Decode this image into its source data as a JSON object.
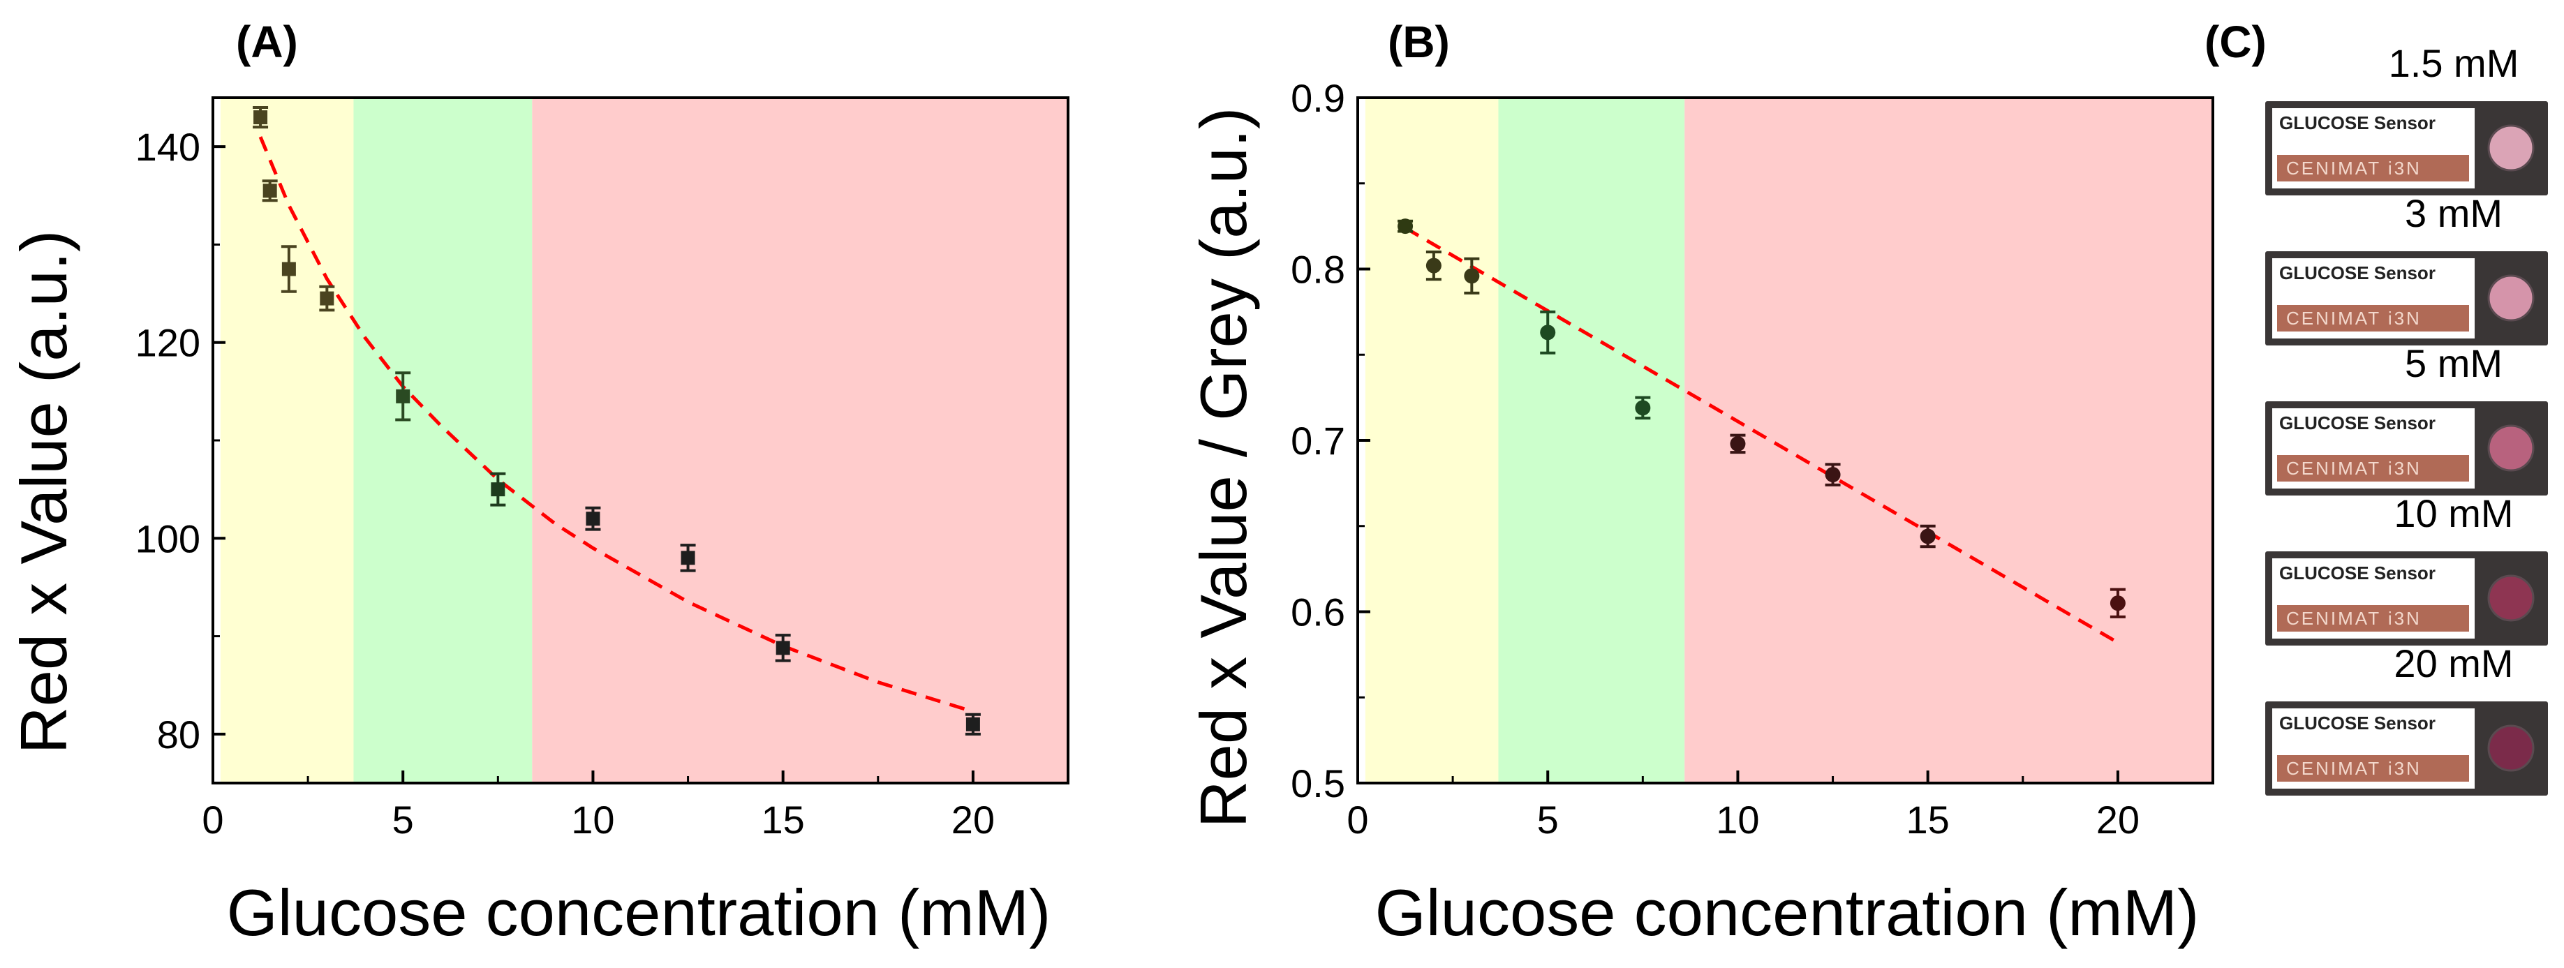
{
  "figure": {
    "panels": {
      "A": {
        "label": "(A)"
      },
      "B": {
        "label": "(B)"
      },
      "C": {
        "label": "(C)"
      }
    },
    "colors": {
      "zone_low": "#ffffd2",
      "zone_mid": "#ccffcc",
      "zone_high": "#ffcccc",
      "fit_line": "#ff0000"
    }
  },
  "chart_data": [
    {
      "id": "A",
      "type": "scatter",
      "title": "(A)",
      "xlabel": "Glucose concentration (mM)",
      "ylabel": "Red x Value (a.u.)",
      "xlim": [
        0,
        22.5
      ],
      "ylim": [
        75,
        145
      ],
      "xticks": [
        0,
        5,
        10,
        15,
        20
      ],
      "yticks": [
        80,
        100,
        120,
        140
      ],
      "grid": false,
      "zones": [
        {
          "name": "low",
          "x_from": 0.2,
          "x_to": 3.7,
          "color": "#ffffd2"
        },
        {
          "name": "mid",
          "x_from": 3.7,
          "x_to": 8.4,
          "color": "#ccffcc"
        },
        {
          "name": "high",
          "x_from": 8.4,
          "x_to": 22.5,
          "color": "#ffcccc"
        }
      ],
      "marker": "square",
      "series": [
        {
          "name": "data",
          "x": [
            1.25,
            1.5,
            2,
            3,
            5,
            7.5,
            10,
            12.5,
            15,
            20
          ],
          "y": [
            143,
            135.5,
            127.5,
            124.5,
            114.5,
            105,
            102,
            98,
            88.8,
            81
          ],
          "yerr": [
            1.0,
            1.0,
            2.3,
            1.2,
            2.4,
            1.6,
            1.1,
            1.3,
            1.3,
            1.0
          ],
          "colors": [
            "#4a4420",
            "#4a4420",
            "#4a4420",
            "#4a4420",
            "#2a4a22",
            "#1e3c1e",
            "#1e1e1e",
            "#1e1e1e",
            "#1e1e1e",
            "#1e1e1e"
          ]
        },
        {
          "name": "fit",
          "style": "dashed",
          "color": "#ff0000",
          "x": [
            1.25,
            2,
            3,
            4,
            5,
            6,
            7.5,
            9,
            10,
            12.5,
            15,
            17.5,
            20
          ],
          "y": [
            141,
            134,
            126.5,
            120.5,
            115.5,
            111.5,
            106,
            101.5,
            99,
            93.5,
            89,
            85.3,
            82.3
          ]
        }
      ]
    },
    {
      "id": "B",
      "type": "scatter",
      "title": "(B)",
      "xlabel": "Glucose concentration (mM)",
      "ylabel": "Red x Value / Grey (a.u.)",
      "xlim": [
        0,
        22.5
      ],
      "ylim": [
        0.5,
        0.9
      ],
      "xticks": [
        0,
        5,
        10,
        15,
        20
      ],
      "yticks": [
        0.5,
        0.6,
        0.7,
        0.8,
        0.9
      ],
      "ytick_labels": [
        "0.5",
        "0.6",
        "0.7",
        "0.8",
        "0.9"
      ],
      "grid": false,
      "zones": [
        {
          "name": "low",
          "x_from": 0.2,
          "x_to": 3.7,
          "color": "#ffffd2"
        },
        {
          "name": "mid",
          "x_from": 3.7,
          "x_to": 8.6,
          "color": "#ccffcc"
        },
        {
          "name": "high",
          "x_from": 8.6,
          "x_to": 22.5,
          "color": "#ffcccc"
        }
      ],
      "marker": "circle",
      "series": [
        {
          "name": "data",
          "x": [
            1.25,
            2,
            3,
            5,
            7.5,
            10,
            12.5,
            15,
            20
          ],
          "y": [
            0.825,
            0.802,
            0.796,
            0.763,
            0.719,
            0.698,
            0.68,
            0.644,
            0.605
          ],
          "yerr": [
            0.003,
            0.008,
            0.01,
            0.012,
            0.006,
            0.005,
            0.006,
            0.006,
            0.008
          ],
          "colors": [
            "#2f3a12",
            "#3a3a18",
            "#3a3a18",
            "#1e4a22",
            "#1e4a22",
            "#3a1414",
            "#3a1414",
            "#3a1414",
            "#4a1010"
          ]
        },
        {
          "name": "fit",
          "style": "dashed",
          "color": "#ff0000",
          "x": [
            1.25,
            20
          ],
          "y": [
            0.824,
            0.582
          ]
        }
      ]
    }
  ],
  "strips": [
    {
      "label": "1.5 mM",
      "title": "GLUCOSE Sensor",
      "brand": "CENIMAT i3N",
      "well_color": "#dba4b6"
    },
    {
      "label": "3 mM",
      "title": "GLUCOSE Sensor",
      "brand": "CENIMAT i3N",
      "well_color": "#d594aa"
    },
    {
      "label": "5 mM",
      "title": "GLUCOSE Sensor",
      "brand": "CENIMAT i3N",
      "well_color": "#b8627e"
    },
    {
      "label": "10 mM",
      "title": "GLUCOSE Sensor",
      "brand": "CENIMAT i3N",
      "well_color": "#8e3552"
    },
    {
      "label": "20 mM",
      "title": "GLUCOSE Sensor",
      "brand": "CENIMAT i3N",
      "well_color": "#7b2b4a"
    }
  ]
}
